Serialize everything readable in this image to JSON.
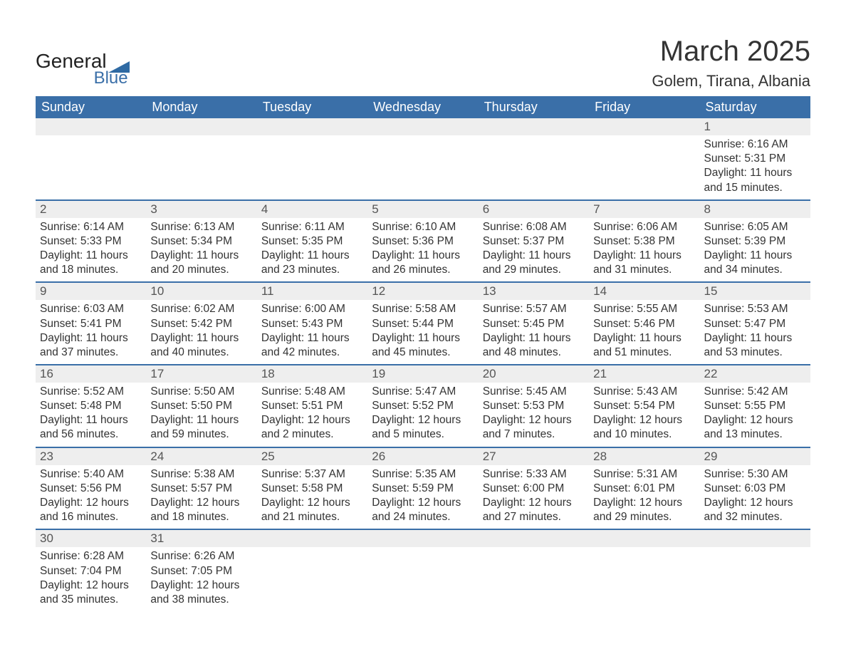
{
  "logo": {
    "text_top": "General",
    "text_bottom": "Blue",
    "flag_color": "#2f6aa3"
  },
  "title": "March 2025",
  "location": "Golem, Tirana, Albania",
  "colors": {
    "header_bg": "#3a6fa8",
    "header_text": "#ffffff",
    "daynum_bg": "#eeeeee",
    "row_border": "#3a6fa8",
    "body_text": "#333333",
    "background": "#ffffff"
  },
  "weekdays": [
    "Sunday",
    "Monday",
    "Tuesday",
    "Wednesday",
    "Thursday",
    "Friday",
    "Saturday"
  ],
  "weeks": [
    [
      null,
      null,
      null,
      null,
      null,
      null,
      {
        "n": "1",
        "sr": "Sunrise: 6:16 AM",
        "ss": "Sunset: 5:31 PM",
        "dl": "Daylight: 11 hours and 15 minutes."
      }
    ],
    [
      {
        "n": "2",
        "sr": "Sunrise: 6:14 AM",
        "ss": "Sunset: 5:33 PM",
        "dl": "Daylight: 11 hours and 18 minutes."
      },
      {
        "n": "3",
        "sr": "Sunrise: 6:13 AM",
        "ss": "Sunset: 5:34 PM",
        "dl": "Daylight: 11 hours and 20 minutes."
      },
      {
        "n": "4",
        "sr": "Sunrise: 6:11 AM",
        "ss": "Sunset: 5:35 PM",
        "dl": "Daylight: 11 hours and 23 minutes."
      },
      {
        "n": "5",
        "sr": "Sunrise: 6:10 AM",
        "ss": "Sunset: 5:36 PM",
        "dl": "Daylight: 11 hours and 26 minutes."
      },
      {
        "n": "6",
        "sr": "Sunrise: 6:08 AM",
        "ss": "Sunset: 5:37 PM",
        "dl": "Daylight: 11 hours and 29 minutes."
      },
      {
        "n": "7",
        "sr": "Sunrise: 6:06 AM",
        "ss": "Sunset: 5:38 PM",
        "dl": "Daylight: 11 hours and 31 minutes."
      },
      {
        "n": "8",
        "sr": "Sunrise: 6:05 AM",
        "ss": "Sunset: 5:39 PM",
        "dl": "Daylight: 11 hours and 34 minutes."
      }
    ],
    [
      {
        "n": "9",
        "sr": "Sunrise: 6:03 AM",
        "ss": "Sunset: 5:41 PM",
        "dl": "Daylight: 11 hours and 37 minutes."
      },
      {
        "n": "10",
        "sr": "Sunrise: 6:02 AM",
        "ss": "Sunset: 5:42 PM",
        "dl": "Daylight: 11 hours and 40 minutes."
      },
      {
        "n": "11",
        "sr": "Sunrise: 6:00 AM",
        "ss": "Sunset: 5:43 PM",
        "dl": "Daylight: 11 hours and 42 minutes."
      },
      {
        "n": "12",
        "sr": "Sunrise: 5:58 AM",
        "ss": "Sunset: 5:44 PM",
        "dl": "Daylight: 11 hours and 45 minutes."
      },
      {
        "n": "13",
        "sr": "Sunrise: 5:57 AM",
        "ss": "Sunset: 5:45 PM",
        "dl": "Daylight: 11 hours and 48 minutes."
      },
      {
        "n": "14",
        "sr": "Sunrise: 5:55 AM",
        "ss": "Sunset: 5:46 PM",
        "dl": "Daylight: 11 hours and 51 minutes."
      },
      {
        "n": "15",
        "sr": "Sunrise: 5:53 AM",
        "ss": "Sunset: 5:47 PM",
        "dl": "Daylight: 11 hours and 53 minutes."
      }
    ],
    [
      {
        "n": "16",
        "sr": "Sunrise: 5:52 AM",
        "ss": "Sunset: 5:48 PM",
        "dl": "Daylight: 11 hours and 56 minutes."
      },
      {
        "n": "17",
        "sr": "Sunrise: 5:50 AM",
        "ss": "Sunset: 5:50 PM",
        "dl": "Daylight: 11 hours and 59 minutes."
      },
      {
        "n": "18",
        "sr": "Sunrise: 5:48 AM",
        "ss": "Sunset: 5:51 PM",
        "dl": "Daylight: 12 hours and 2 minutes."
      },
      {
        "n": "19",
        "sr": "Sunrise: 5:47 AM",
        "ss": "Sunset: 5:52 PM",
        "dl": "Daylight: 12 hours and 5 minutes."
      },
      {
        "n": "20",
        "sr": "Sunrise: 5:45 AM",
        "ss": "Sunset: 5:53 PM",
        "dl": "Daylight: 12 hours and 7 minutes."
      },
      {
        "n": "21",
        "sr": "Sunrise: 5:43 AM",
        "ss": "Sunset: 5:54 PM",
        "dl": "Daylight: 12 hours and 10 minutes."
      },
      {
        "n": "22",
        "sr": "Sunrise: 5:42 AM",
        "ss": "Sunset: 5:55 PM",
        "dl": "Daylight: 12 hours and 13 minutes."
      }
    ],
    [
      {
        "n": "23",
        "sr": "Sunrise: 5:40 AM",
        "ss": "Sunset: 5:56 PM",
        "dl": "Daylight: 12 hours and 16 minutes."
      },
      {
        "n": "24",
        "sr": "Sunrise: 5:38 AM",
        "ss": "Sunset: 5:57 PM",
        "dl": "Daylight: 12 hours and 18 minutes."
      },
      {
        "n": "25",
        "sr": "Sunrise: 5:37 AM",
        "ss": "Sunset: 5:58 PM",
        "dl": "Daylight: 12 hours and 21 minutes."
      },
      {
        "n": "26",
        "sr": "Sunrise: 5:35 AM",
        "ss": "Sunset: 5:59 PM",
        "dl": "Daylight: 12 hours and 24 minutes."
      },
      {
        "n": "27",
        "sr": "Sunrise: 5:33 AM",
        "ss": "Sunset: 6:00 PM",
        "dl": "Daylight: 12 hours and 27 minutes."
      },
      {
        "n": "28",
        "sr": "Sunrise: 5:31 AM",
        "ss": "Sunset: 6:01 PM",
        "dl": "Daylight: 12 hours and 29 minutes."
      },
      {
        "n": "29",
        "sr": "Sunrise: 5:30 AM",
        "ss": "Sunset: 6:03 PM",
        "dl": "Daylight: 12 hours and 32 minutes."
      }
    ],
    [
      {
        "n": "30",
        "sr": "Sunrise: 6:28 AM",
        "ss": "Sunset: 7:04 PM",
        "dl": "Daylight: 12 hours and 35 minutes."
      },
      {
        "n": "31",
        "sr": "Sunrise: 6:26 AM",
        "ss": "Sunset: 7:05 PM",
        "dl": "Daylight: 12 hours and 38 minutes."
      },
      null,
      null,
      null,
      null,
      null
    ]
  ]
}
